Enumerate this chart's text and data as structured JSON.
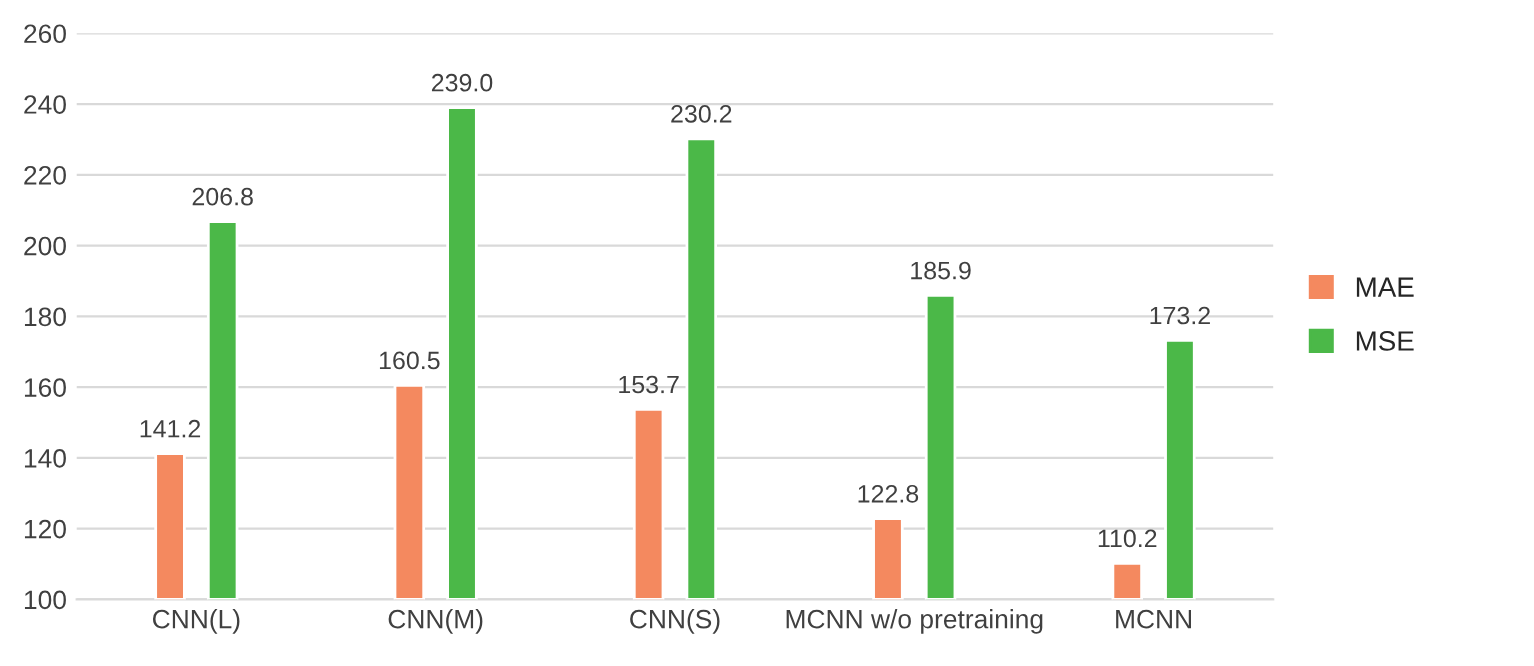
{
  "chart_data": {
    "type": "bar",
    "categories": [
      "CNN(L)",
      "CNN(M)",
      "CNN(S)",
      "MCNN w/o pretraining",
      "MCNN"
    ],
    "series": [
      {
        "name": "MAE",
        "color": "#f4895f",
        "values": [
          141.2,
          160.5,
          153.7,
          122.8,
          110.2
        ]
      },
      {
        "name": "MSE",
        "color": "#4bb848",
        "values": [
          206.8,
          239.0,
          230.2,
          185.9,
          173.2
        ]
      }
    ],
    "ylim": [
      100,
      260
    ],
    "yticks": [
      100,
      120,
      140,
      160,
      180,
      200,
      220,
      240,
      260
    ],
    "grid": "y",
    "legend": "right",
    "value_labels": [
      [
        "141.2",
        "160.5",
        "153.7",
        "122.8",
        "110.2"
      ],
      [
        "206.8",
        "239.0",
        "230.2",
        "185.9",
        "173.2"
      ]
    ]
  }
}
